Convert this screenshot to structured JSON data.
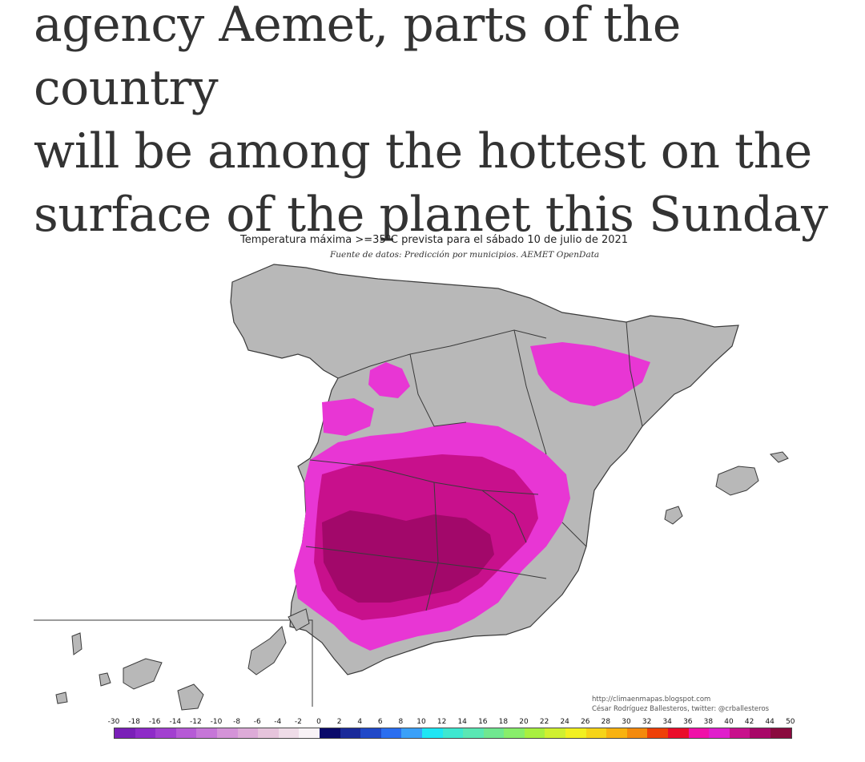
{
  "headline": {
    "lines": [
      "agency Aemet, parts of the country",
      "will be among the hottest on the",
      "surface of the planet this Sunday"
    ]
  },
  "map": {
    "title": "Temperatura máxima >=35ºC prevista para el sábado 10 de julio de 2021",
    "source": "Fuente de datos: Predicción por municipios. AEMET OpenData",
    "credit_url": "http://climaenmapas.blogspot.com",
    "credit_author": "César Rodríguez Ballesteros, twitter: @crballesteros",
    "colors": {
      "land": "#b8b8b8",
      "border": "#3a3a3a",
      "heat_35": "#e836d4",
      "heat_38": "#c8108c",
      "heat_40": "#a2086a"
    },
    "legend": {
      "labels": [
        "-30",
        "-18",
        "-16",
        "-14",
        "-12",
        "-10",
        "-8",
        "-6",
        "-4",
        "-2",
        "0",
        "2",
        "4",
        "6",
        "8",
        "10",
        "12",
        "14",
        "16",
        "18",
        "20",
        "22",
        "24",
        "26",
        "28",
        "30",
        "32",
        "34",
        "36",
        "38",
        "40",
        "42",
        "44",
        "50"
      ],
      "colors": [
        "#7a1fb8",
        "#8e2bc8",
        "#a240d0",
        "#b65ad6",
        "#c676d8",
        "#d493d8",
        "#ddabd8",
        "#e6c4dc",
        "#efdce8",
        "#f8f2f6",
        "#0a0a6a",
        "#1a2a9a",
        "#2048c8",
        "#2a6ef0",
        "#3aa0f8",
        "#1ee6f4",
        "#3ee8d0",
        "#5ae8b4",
        "#70e890",
        "#88ee6a",
        "#a8f040",
        "#d0f030",
        "#f2f020",
        "#f6d418",
        "#f8b210",
        "#f48a0c",
        "#ee4008",
        "#ea0c2a",
        "#f010a8",
        "#e01ecc",
        "#c8108c",
        "#a80868",
        "#8a0a3e"
      ]
    }
  }
}
